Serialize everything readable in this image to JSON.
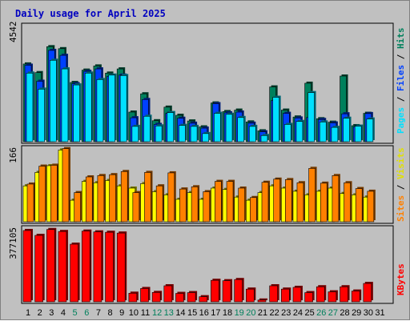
{
  "title": "Daily usage for April 2025",
  "colors": {
    "hits": "#00805c",
    "files": "#0040ff",
    "pages": "#00e0ff",
    "visits": "#ffff00",
    "sites": "#ff8000",
    "kbytes": "#ff0000",
    "weekday_label": "#000000",
    "weekend_label": "#00805c"
  },
  "panels": {
    "top": {
      "max_label": "4542",
      "legend": [
        "Pages",
        "Files",
        "Hits"
      ]
    },
    "middle": {
      "max_label": "166",
      "legend": [
        "Sites",
        "Visits"
      ]
    },
    "bottom": {
      "max_label": "377105",
      "legend": [
        "KBytes"
      ]
    }
  },
  "chart_data": {
    "type": "bar",
    "title": "Daily usage for April 2025",
    "categories": [
      "1",
      "2",
      "3",
      "4",
      "5",
      "6",
      "7",
      "8",
      "9",
      "10",
      "11",
      "12",
      "13",
      "14",
      "15",
      "16",
      "17",
      "18",
      "19",
      "20",
      "21",
      "22",
      "23",
      "24",
      "25",
      "26",
      "27",
      "28",
      "29",
      "30",
      "31"
    ],
    "weekend_days": [
      "5",
      "6",
      "12",
      "13",
      "19",
      "20",
      "26",
      "27"
    ],
    "panels": [
      {
        "name": "top",
        "ylim": [
          0,
          4542
        ],
        "series": [
          {
            "name": "Hits",
            "values": [
              3150,
              2800,
              3850,
              3770,
              2400,
              2900,
              3070,
              2780,
              2950,
              1200,
              1940,
              850,
              1400,
              1070,
              840,
              600,
              1570,
              1220,
              1280,
              800,
              440,
              2220,
              1280,
              1000,
              2370,
              930,
              790,
              2660,
              650,
              1150,
              null
            ]
          },
          {
            "name": "Files",
            "values": [
              3100,
              2450,
              3700,
              3500,
              2350,
              2850,
              2950,
              2650,
              2700,
              970,
              1710,
              700,
              1150,
              950,
              750,
              550,
              1540,
              1170,
              1200,
              750,
              400,
              1670,
              1150,
              960,
              980,
              900,
              760,
              1130,
              600,
              1140,
              null
            ]
          },
          {
            "name": "Pages",
            "values": [
              2780,
              2130,
              3300,
              2950,
              2300,
              2780,
              2520,
              2700,
              2680,
              620,
              1030,
              640,
              1180,
              660,
              620,
              330,
              1150,
              1110,
              980,
              620,
              250,
              1800,
              700,
              820,
              1990,
              800,
              580,
              950,
              630,
              920,
              null
            ]
          }
        ]
      },
      {
        "name": "middle",
        "ylim": [
          0,
          166
        ],
        "series": [
          {
            "name": "Visits",
            "values": [
              80,
              110,
              125,
              160,
              48,
              90,
              87,
              92,
              80,
              75,
              85,
              67,
              60,
              50,
              65,
              50,
              75,
              72,
              55,
              48,
              65,
              80,
              75,
              68,
              60,
              68,
              75,
              63,
              60,
              55,
              null
            ]
          },
          {
            "name": "Sites",
            "values": [
              84,
              124,
              126,
              163,
              65,
              100,
              103,
              105,
              112,
              65,
              110,
              80,
              109,
              73,
              78,
              67,
              90,
              90,
              75,
              54,
              88,
              95,
              94,
              87,
              119,
              86,
              103,
              87,
              74,
              68,
              null
            ]
          }
        ]
      },
      {
        "name": "bottom",
        "ylim": [
          0,
          377105
        ],
        "series": [
          {
            "name": "KBytes",
            "values": [
              365000,
              340000,
              370000,
              360000,
              295000,
              362000,
              358000,
              356000,
              352000,
              44000,
              68000,
              48000,
              82000,
              43000,
              47000,
              26000,
              110000,
              108000,
              114000,
              65000,
              9000,
              82000,
              65000,
              74000,
              47000,
              77000,
              51000,
              77000,
              55000,
              94000,
              null
            ]
          }
        ]
      }
    ]
  }
}
